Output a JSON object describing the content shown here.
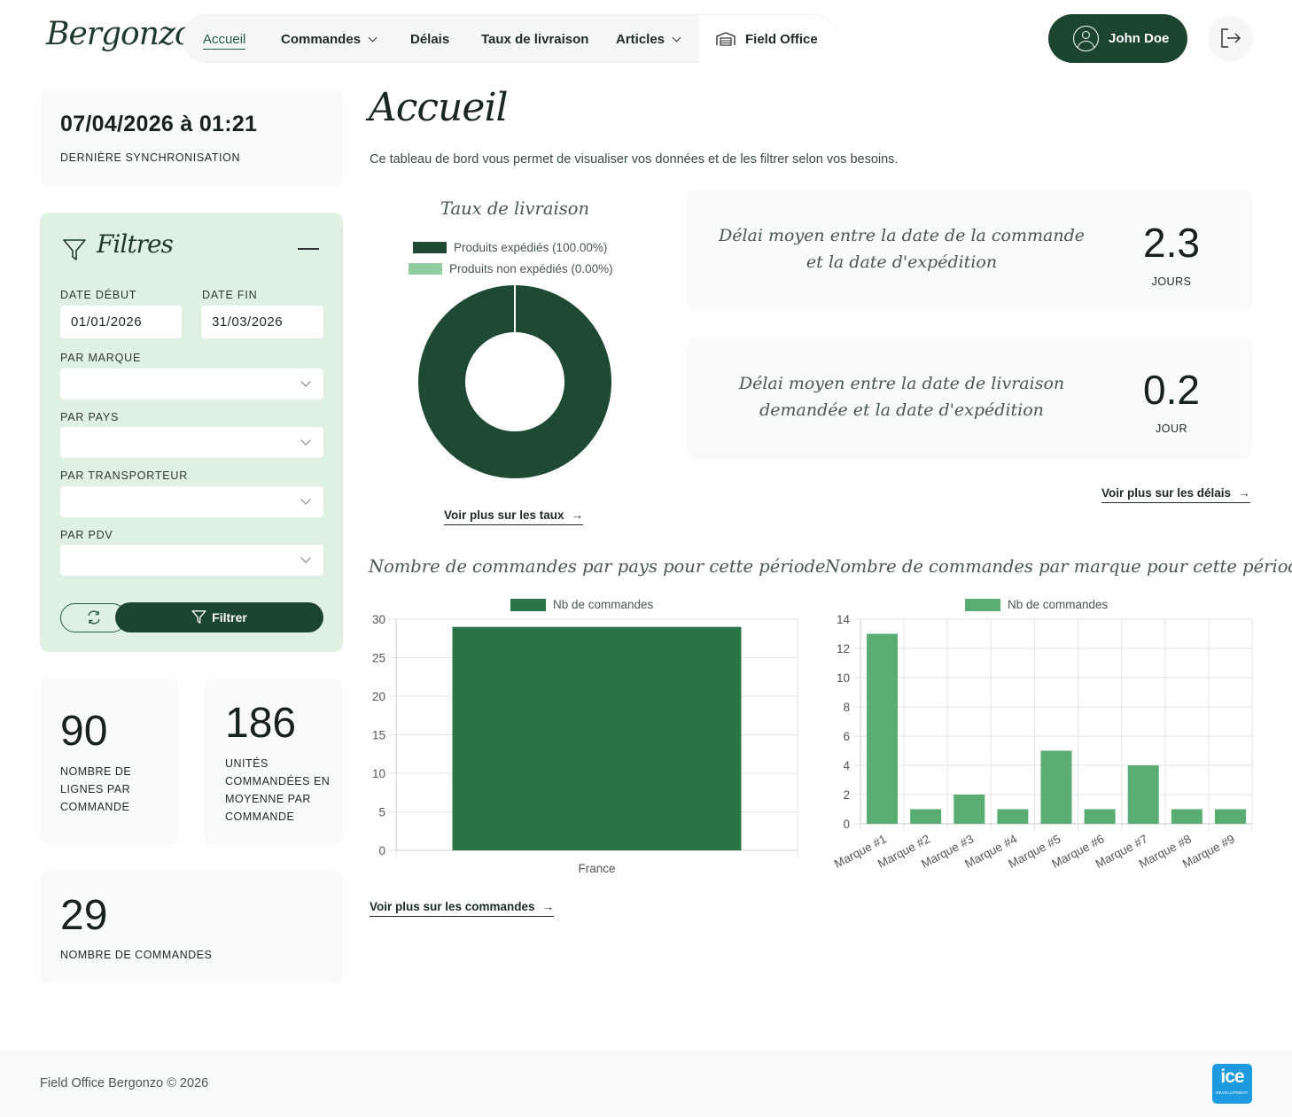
{
  "brand": {
    "logo_text": "Bergonzo"
  },
  "nav": {
    "items": [
      {
        "label": "Accueil"
      },
      {
        "label": "Commandes"
      },
      {
        "label": "Délais"
      },
      {
        "label": "Taux de livraison"
      },
      {
        "label": "Articles"
      },
      {
        "label": "Field Office"
      }
    ]
  },
  "user": {
    "name": "John Doe"
  },
  "sync": {
    "datetime": "07/04/2026 à 01:21",
    "label": "DERNIÈRE SYNCHRONISATION"
  },
  "filters": {
    "title": "Filtres",
    "date_start_label": "DATE DÉBUT",
    "date_start_value": "01/01/2026",
    "date_end_label": "DATE FIN",
    "date_end_value": "31/03/2026",
    "brand_label": "PAR MARQUE",
    "country_label": "PAR PAYS",
    "carrier_label": "PAR TRANSPORTEUR",
    "pdv_label": "PAR PDV",
    "submit_label": "Filtrer"
  },
  "stats": {
    "lines_per_order": {
      "value": "90",
      "label": "NOMBRE DE LIGNES PAR COMMANDE"
    },
    "units_per_order": {
      "value": "186",
      "label": "UNITÉS COMMANDÉES EN MOYENNE PAR COMMANDE"
    },
    "orders_count": {
      "value": "29",
      "label": "NOMBRE DE COMMANDES"
    }
  },
  "main": {
    "title": "Accueil",
    "subtitle": "Ce tableau de bord vous permet de visualiser vos données et de les filtrer selon vos besoins."
  },
  "delivery_rate": {
    "title": "Taux de livraison",
    "legend_shipped": "Produits expédiés (100.00%)",
    "legend_not_shipped": "Produits non expédiés (0.00%)",
    "link": "Voir plus sur les taux"
  },
  "metrics": {
    "order_to_ship": {
      "text": "Délai moyen entre la date de la commande et la date d'expédition",
      "value": "2.3",
      "unit": "JOURS"
    },
    "requested_to_ship": {
      "text": "Délai moyen entre la date de livraison demandée et la date d'expédition",
      "value": "0.2",
      "unit": "JOUR"
    },
    "link": "Voir plus sur les délais"
  },
  "orders_by_country": {
    "title": "Nombre de commandes par pays pour cette période",
    "link": "Voir plus sur les commandes"
  },
  "orders_by_brand": {
    "title": "Nombre de commandes par marque pour cette période"
  },
  "colors": {
    "dark_green": "#1c4530",
    "donut_shipped": "#1e4a33",
    "donut_not_shipped": "#8fcc9f",
    "bar_country": "#2a7548",
    "bar_brand": "#5aad72",
    "filters_bg": "#dff1e3"
  },
  "chart_data": [
    {
      "type": "pie",
      "title": "Taux de livraison",
      "categories": [
        "Produits expédiés (100.00%)",
        "Produits non expédiés (0.00%)"
      ],
      "values": [
        100,
        0
      ],
      "legend": "top"
    },
    {
      "type": "bar",
      "title": "Nombre de commandes par pays pour cette période",
      "categories": [
        "France"
      ],
      "series": [
        {
          "name": "Nb de commandes",
          "values": [
            29
          ]
        }
      ],
      "ylim": [
        0,
        30
      ],
      "yticks": [
        0,
        5,
        10,
        15,
        20,
        25,
        30
      ],
      "grid": true,
      "legend": "top"
    },
    {
      "type": "bar",
      "title": "Nombre de commandes par marque pour cette période",
      "categories": [
        "Marque #1",
        "Marque #2",
        "Marque #3",
        "Marque #4",
        "Marque #5",
        "Marque #6",
        "Marque #7",
        "Marque #8",
        "Marque #9"
      ],
      "series": [
        {
          "name": "Nb de commandes",
          "values": [
            13,
            1,
            2,
            1,
            5,
            1,
            4,
            1,
            1
          ]
        }
      ],
      "ylim": [
        0,
        14
      ],
      "yticks": [
        0,
        2,
        4,
        6,
        8,
        10,
        12,
        14
      ],
      "grid": true,
      "legend": "top"
    }
  ],
  "footer": {
    "text": "Field Office Bergonzo © 2026",
    "partner_logo_text": "ice",
    "partner_logo_sub": "DEVELOPMENT"
  }
}
